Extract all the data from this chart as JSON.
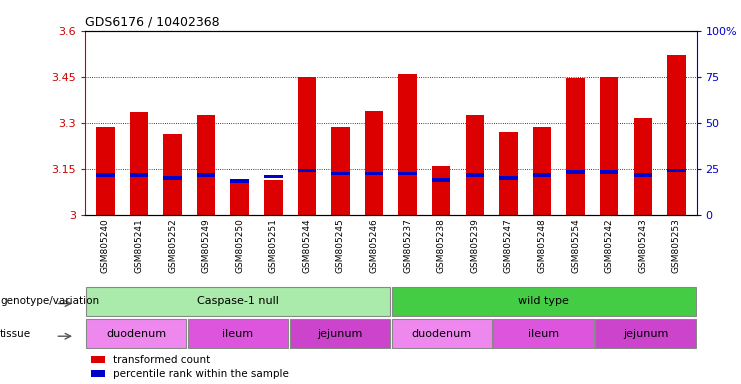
{
  "title": "GDS6176 / 10402368",
  "samples": [
    "GSM805240",
    "GSM805241",
    "GSM805252",
    "GSM805249",
    "GSM805250",
    "GSM805251",
    "GSM805244",
    "GSM805245",
    "GSM805246",
    "GSM805237",
    "GSM805238",
    "GSM805239",
    "GSM805247",
    "GSM805248",
    "GSM805254",
    "GSM805242",
    "GSM805243",
    "GSM805253"
  ],
  "transformed_count": [
    3.285,
    3.335,
    3.265,
    3.325,
    3.105,
    3.115,
    3.45,
    3.285,
    3.34,
    3.46,
    3.16,
    3.325,
    3.27,
    3.285,
    3.445,
    3.45,
    3.315,
    3.52
  ],
  "percentile_rank": [
    3.13,
    3.13,
    3.12,
    3.13,
    3.11,
    3.125,
    3.145,
    3.135,
    3.135,
    3.135,
    3.115,
    3.13,
    3.12,
    3.13,
    3.14,
    3.14,
    3.13,
    3.145
  ],
  "bar_bottom": 3.0,
  "ylim_left": [
    3.0,
    3.6
  ],
  "ylim_right": [
    0,
    100
  ],
  "yticks_left": [
    3.0,
    3.15,
    3.3,
    3.45,
    3.6
  ],
  "yticks_right": [
    0,
    25,
    50,
    75,
    100
  ],
  "ytick_labels_left": [
    "3",
    "3.15",
    "3.3",
    "3.45",
    "3.6"
  ],
  "ytick_labels_right": [
    "0",
    "25",
    "50",
    "75",
    "100%"
  ],
  "bar_color": "#dd0000",
  "percentile_color": "#0000cc",
  "genotype_groups": [
    {
      "label": "Caspase-1 null",
      "start": 0,
      "end": 9,
      "color": "#aaeaaa"
    },
    {
      "label": "wild type",
      "start": 9,
      "end": 18,
      "color": "#44cc44"
    }
  ],
  "tissue_groups": [
    {
      "label": "duodenum",
      "start": 0,
      "end": 3,
      "color": "#ee88ee"
    },
    {
      "label": "ileum",
      "start": 3,
      "end": 6,
      "color": "#dd55dd"
    },
    {
      "label": "jejunum",
      "start": 6,
      "end": 9,
      "color": "#cc44cc"
    },
    {
      "label": "duodenum",
      "start": 9,
      "end": 12,
      "color": "#ee88ee"
    },
    {
      "label": "ileum",
      "start": 12,
      "end": 15,
      "color": "#dd55dd"
    },
    {
      "label": "jejunum",
      "start": 15,
      "end": 18,
      "color": "#cc44cc"
    }
  ],
  "legend_items": [
    {
      "label": "transformed count",
      "color": "#dd0000"
    },
    {
      "label": "percentile rank within the sample",
      "color": "#0000cc"
    }
  ],
  "left_axis_color": "#cc0000",
  "right_axis_color": "#0000cc",
  "bar_width": 0.55,
  "percentile_bar_height": 0.012,
  "grid_yticks": [
    3.15,
    3.3,
    3.45
  ],
  "label_genotype": "genotype/variation",
  "label_tissue": "tissue"
}
